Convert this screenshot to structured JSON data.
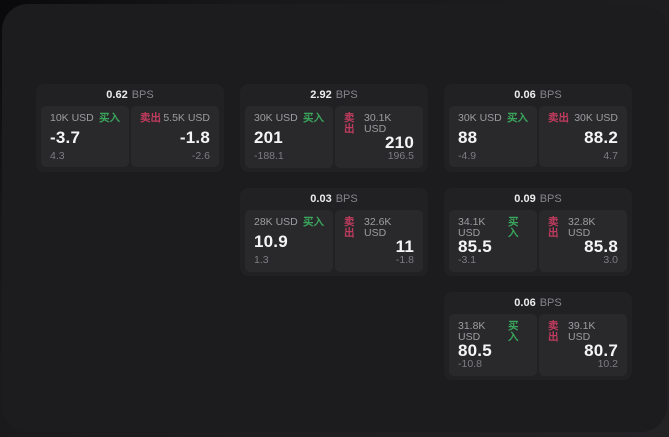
{
  "colors": {
    "buy": "#3aa65c",
    "sell": "#c03b5e",
    "surface_bg": "#1c1c1e",
    "card_bg": "#212123",
    "side_panel_bg": "#29292b"
  },
  "labels": {
    "buy": "买入",
    "sell": "卖出",
    "bps_suffix": "BPS"
  },
  "cards": [
    {
      "bps_value": "0.62",
      "buy": {
        "notional": "10K USD",
        "price": "-3.7",
        "change": "4.3"
      },
      "sell": {
        "notional": "5.5K USD",
        "price": "-1.8",
        "change": "-2.6"
      }
    },
    {
      "bps_value": "2.92",
      "buy": {
        "notional": "30K USD",
        "price": "201",
        "change": "-188.1"
      },
      "sell": {
        "notional": "30.1K USD",
        "price": "210",
        "change": "196.5"
      }
    },
    {
      "bps_value": "0.06",
      "buy": {
        "notional": "30K USD",
        "price": "88",
        "change": "-4.9"
      },
      "sell": {
        "notional": "30K USD",
        "price": "88.2",
        "change": "4.7"
      }
    },
    {
      "bps_value": "0.03",
      "buy": {
        "notional": "28K USD",
        "price": "10.9",
        "change": "1.3"
      },
      "sell": {
        "notional": "32.6K USD",
        "price": "11",
        "change": "-1.8"
      }
    },
    {
      "bps_value": "0.09",
      "buy": {
        "notional": "34.1K USD",
        "price": "85.5",
        "change": "-3.1"
      },
      "sell": {
        "notional": "32.8K USD",
        "price": "85.8",
        "change": "3.0"
      }
    },
    {
      "bps_value": "0.06",
      "buy": {
        "notional": "31.8K USD",
        "price": "80.5",
        "change": "-10.8"
      },
      "sell": {
        "notional": "39.1K USD",
        "price": "80.7",
        "change": "10.2"
      }
    }
  ]
}
